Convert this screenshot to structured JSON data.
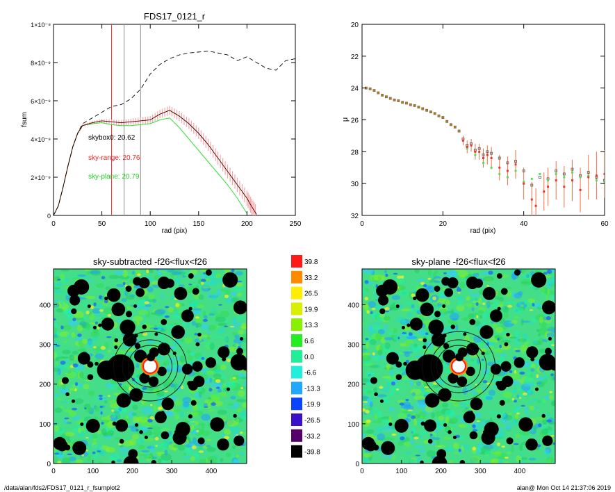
{
  "footer": {
    "path": "/data/alan/fds2/FDS17_0121_r_fsumplot2",
    "stamp": "alan@  Mon Oct 14 21:37:06 2019"
  },
  "colors": {
    "black_profile": "#000000",
    "range_fill": "#f4a6a6",
    "range_line": "#dd2222",
    "plane_line": "#33dd33",
    "skybox_vline": "#8a8a8a",
    "range_vline": "#ee3333",
    "map_background": "#44dd88"
  },
  "chart_data": [
    {
      "id": "fsum-profile",
      "type": "line",
      "title": "FDS17_0121_r",
      "xlabel": "rad (pix)",
      "ylabel": "fsum",
      "xlim": [
        0,
        250
      ],
      "ylim": [
        0,
        1e-08
      ],
      "xticks": [
        "0",
        "50",
        "100",
        "150",
        "200",
        "250"
      ],
      "yticks": [
        "0",
        "2×10⁻⁹",
        "4×10⁻⁹",
        "6×10⁻⁹",
        "8×10⁻⁹",
        "1×10⁻⁸"
      ],
      "vlines": [
        60,
        73,
        90
      ],
      "annotations": [
        {
          "text": "skybox0: 20.62",
          "color": "#000000"
        },
        {
          "text": "sky-range: 20.76",
          "color": "#ee2222"
        },
        {
          "text": "sky-plane: 20.79",
          "color": "#22cc22"
        }
      ],
      "series": [
        {
          "x": [
            0,
            5,
            10,
            15,
            20,
            25,
            30,
            40,
            50,
            60,
            70,
            80,
            90,
            100,
            110,
            120,
            130,
            140,
            150,
            160,
            170,
            180,
            190,
            200,
            210,
            220,
            230,
            240,
            250
          ],
          "values": [
            0,
            5e-10,
            1.5e-09,
            2.6e-09,
            3.6e-09,
            4.3e-09,
            4.8e-09,
            5.1e-09,
            5.4e-09,
            5.7e-09,
            5.8e-09,
            6.1e-09,
            6.6e-09,
            7.4e-09,
            7.9e-09,
            8.2e-09,
            8.4e-09,
            8.5e-09,
            8.55e-09,
            8.6e-09,
            8.5e-09,
            8.4e-09,
            8.1e-09,
            8.3e-09,
            8e-09,
            7.7e-09,
            7.6e-09,
            8.1e-09,
            8.2e-09
          ]
        },
        {
          "x": [
            0,
            5,
            10,
            15,
            20,
            25,
            30,
            40,
            50,
            60,
            70,
            80,
            90,
            100,
            110,
            120,
            130,
            140,
            150,
            160,
            170,
            180,
            190,
            200,
            205,
            210
          ],
          "values": [
            0,
            5e-10,
            1.5e-09,
            2.6e-09,
            3.6e-09,
            4.3e-09,
            4.7e-09,
            4.85e-09,
            4.95e-09,
            4.9e-09,
            4.85e-09,
            4.9e-09,
            4.95e-09,
            5e-09,
            5.3e-09,
            5.5e-09,
            5.2e-09,
            4.8e-09,
            4.3e-09,
            3.7e-09,
            3e-09,
            2.3e-09,
            1.6e-09,
            9e-10,
            4.5e-10,
            5e-11
          ],
          "errors": [
            0,
            2e-11,
            4e-11,
            5e-11,
            5e-11,
            6e-11,
            7e-11,
            8e-11,
            1e-10,
            1.2e-10,
            1.4e-10,
            1.6e-10,
            1.8e-10,
            2e-10,
            2.2e-10,
            2.4e-10,
            2.6e-10,
            2.8e-10,
            3e-10,
            3.2e-10,
            3.4e-10,
            3.6e-10,
            3.8e-10,
            4e-10,
            4.2e-10,
            4.5e-10
          ]
        },
        {
          "x": [
            0,
            5,
            10,
            15,
            20,
            25,
            30,
            40,
            50,
            60,
            70,
            80,
            90,
            100,
            110,
            120,
            130,
            140,
            150,
            160,
            170,
            180,
            190,
            200
          ],
          "values": [
            0,
            5e-10,
            1.5e-09,
            2.6e-09,
            3.6e-09,
            4.3e-09,
            4.7e-09,
            4.8e-09,
            4.85e-09,
            4.75e-09,
            4.7e-09,
            4.7e-09,
            4.75e-09,
            4.8e-09,
            5e-09,
            5.1e-09,
            4.6e-09,
            4e-09,
            3.4e-09,
            2.8e-09,
            2.2e-09,
            1.6e-09,
            9e-10,
            1e-10
          ]
        }
      ]
    },
    {
      "id": "mu-profile",
      "type": "scatter",
      "xlabel": "rad (pix)",
      "ylabel": "μ",
      "xlim": [
        0,
        60
      ],
      "ylim": [
        32,
        20
      ],
      "xticks": [
        "0",
        "20",
        "40",
        "60"
      ],
      "yticks": [
        "20",
        "22",
        "24",
        "26",
        "28",
        "30",
        "32"
      ],
      "series": [
        {
          "x": [
            1,
            2,
            3,
            4,
            5,
            6,
            7,
            8,
            9,
            10,
            11,
            12,
            13,
            14,
            15,
            16,
            17,
            18,
            19,
            20,
            21,
            22,
            23,
            24,
            25,
            26,
            27,
            28,
            29,
            30,
            31,
            32,
            34,
            36,
            38,
            40,
            42,
            44,
            46,
            48,
            50,
            52,
            54,
            56,
            58,
            60
          ],
          "values": [
            24.0,
            24.05,
            24.15,
            24.3,
            24.45,
            24.55,
            24.65,
            24.75,
            24.8,
            24.9,
            24.95,
            25.05,
            25.1,
            25.2,
            25.3,
            25.4,
            25.5,
            25.6,
            25.75,
            25.85,
            26.1,
            26.3,
            26.45,
            26.7,
            27.2,
            27.6,
            27.5,
            27.9,
            27.8,
            28.2,
            28.0,
            28.1,
            28.4,
            28.7,
            28.6,
            29.2,
            30.1,
            29.6,
            29.7,
            29.2,
            29.4,
            29.1,
            29.5,
            29.3,
            29.6,
            29.8
          ]
        },
        {
          "x": [
            25,
            26,
            27,
            28,
            29,
            30,
            31,
            32,
            34,
            36,
            38,
            40,
            42,
            43,
            45,
            46,
            48,
            50,
            52,
            54,
            56,
            58,
            60
          ],
          "values": [
            27.3,
            27.7,
            27.6,
            28.0,
            28.0,
            28.4,
            28.2,
            28.4,
            29.0,
            29.2,
            28.8,
            30.0,
            31.0,
            31.4,
            30.5,
            30.2,
            29.8,
            30.2,
            29.8,
            30.4,
            29.6,
            29.5,
            29.4
          ],
          "errors": [
            0.3,
            0.4,
            0.4,
            0.5,
            0.5,
            0.6,
            0.6,
            0.7,
            0.8,
            0.9,
            0.9,
            1.0,
            1.1,
            1.1,
            1.2,
            1.2,
            1.2,
            1.3,
            1.3,
            1.4,
            1.4,
            1.5,
            1.5
          ]
        },
        {
          "x": [
            26,
            28,
            30,
            32,
            34,
            36,
            38,
            40,
            42,
            44,
            46,
            48,
            50,
            52,
            54,
            56,
            58,
            60
          ],
          "values": [
            27.8,
            28.2,
            28.7,
            29.0,
            29.4,
            29.6,
            29.2,
            29.9,
            29.7,
            29.4,
            29.8,
            29.4,
            29.6,
            29.3,
            29.6,
            29.5,
            29.8,
            29.9
          ]
        }
      ]
    },
    {
      "id": "sky-subtracted-map",
      "type": "heatmap",
      "title": "sky-subtracted -f26<flux<f26",
      "xlim": [
        0,
        490
      ],
      "ylim": [
        0,
        490
      ],
      "xticks": [
        "0",
        "100",
        "200",
        "300",
        "400"
      ],
      "yticks": [
        "0",
        "100",
        "200",
        "300",
        "400"
      ]
    },
    {
      "id": "sky-plane-map",
      "type": "heatmap",
      "title": "sky-plane -f26<flux<f26",
      "xlim": [
        0,
        490
      ],
      "ylim": [
        0,
        490
      ],
      "xticks": [
        "0",
        "100",
        "200",
        "300",
        "400"
      ],
      "yticks": [
        "0",
        "100",
        "200",
        "300",
        "400"
      ]
    }
  ],
  "colorbar": {
    "labels": [
      "39.8",
      "33.2",
      "26.5",
      "19.9",
      "13.3",
      "6.6",
      "0.0",
      "-6.6",
      "-13.3",
      "-19.9",
      "-26.5",
      "-33.2",
      "-39.8"
    ],
    "colors": [
      "#ff1a1a",
      "#ff8a00",
      "#ffee00",
      "#d8f000",
      "#88f000",
      "#22ee22",
      "#22ee99",
      "#22eedd",
      "#20a8ff",
      "#0a44ff",
      "#3a10c8",
      "#54006a",
      "#000000"
    ]
  }
}
